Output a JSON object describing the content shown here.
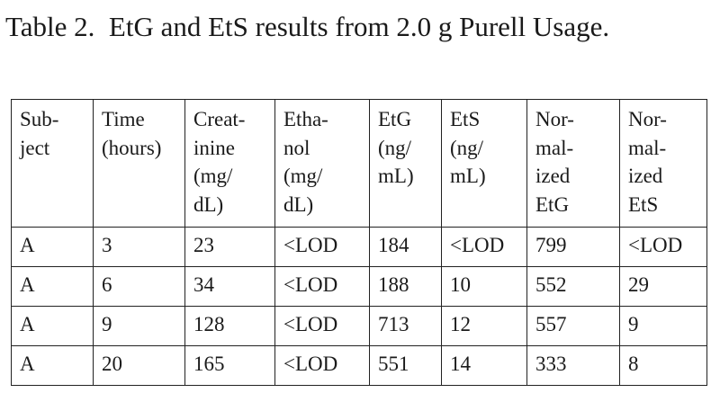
{
  "title": "Table 2.  EtG and EtS results from 2.0 g Purell Usage.",
  "table": {
    "header": [
      [
        "Sub-",
        "ject"
      ],
      [
        "Time",
        "(hours)"
      ],
      [
        "Creat-",
        "inine",
        "(mg/",
        "dL)"
      ],
      [
        "Etha-",
        "nol",
        "(mg/",
        "dL)"
      ],
      [
        "EtG",
        "(ng/",
        "mL)"
      ],
      [
        "EtS",
        "(ng/",
        "mL)"
      ],
      [
        "Nor-",
        "mal-",
        "ized",
        "EtG"
      ],
      [
        "Nor-",
        "mal-",
        "ized",
        "EtS"
      ]
    ],
    "rows": [
      [
        "A",
        "3",
        "23",
        "<LOD",
        "184",
        "<LOD",
        "799",
        "<LOD"
      ],
      [
        "A",
        "6",
        "34",
        "<LOD",
        "188",
        "10",
        "552",
        "29"
      ],
      [
        "A",
        "9",
        "128",
        "<LOD",
        "713",
        "12",
        "557",
        "9"
      ],
      [
        "A",
        "20",
        "165",
        "<LOD",
        "551",
        "14",
        "333",
        "8"
      ]
    ]
  }
}
